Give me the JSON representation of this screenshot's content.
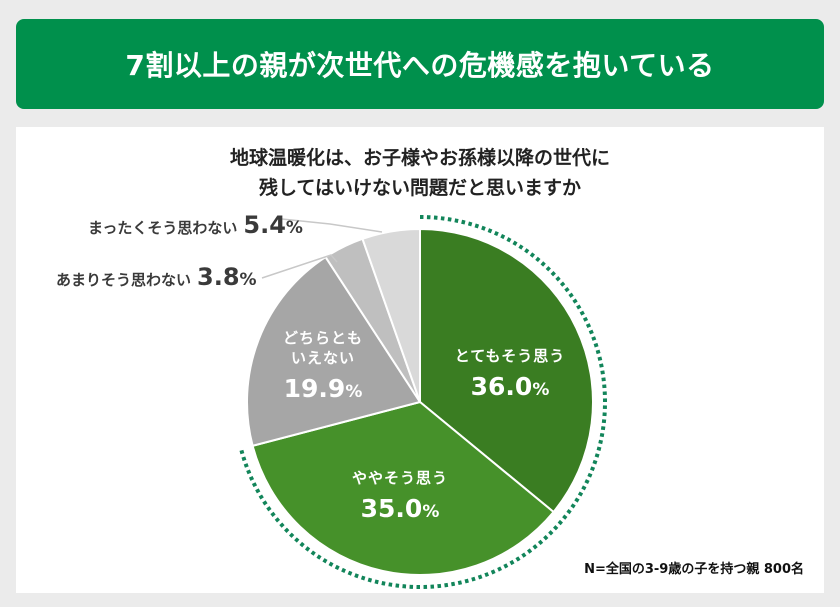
{
  "banner": {
    "title": "7割以上の親が次世代への危機感を抱いている"
  },
  "question": {
    "line1": "地球温暖化は、お子様やお孫様以降の世代に",
    "line2": "残してはいけない問題だと思いますか"
  },
  "labels": {
    "s0": {
      "cat": "とてもそう思う",
      "val": "36.0",
      "unit": "%"
    },
    "s1": {
      "cat": "ややそう思う",
      "val": "35.0",
      "unit": "%"
    },
    "s2": {
      "cat1": "どちらとも",
      "cat2": "いえない",
      "val": "19.9",
      "unit": "%"
    },
    "s3": {
      "cat": "あまりそう思わない",
      "val": "3.8",
      "unit": "%"
    },
    "s4": {
      "cat": "まったくそう思わない",
      "val": "5.4",
      "unit": "%"
    }
  },
  "note": "N=全国の3-9歳の子を持つ親 800名",
  "colors": {
    "banner": "#00904c",
    "very": "#3a7d22",
    "somewhat": "#46912a",
    "neutral": "#a6a6a6",
    "not_much": "#bfbfbf",
    "not_at_all": "#d9d9d9",
    "highlight_dots": "#12855a"
  },
  "chart_data": {
    "type": "pie",
    "title": "地球温暖化は、お子様やお孫様以降の世代に残してはいけない問題だと思いますか",
    "categories": [
      "とてもそう思う",
      "ややそう思う",
      "どちらともいえない",
      "あまりそう思わない",
      "まったくそう思わない"
    ],
    "values": [
      36.0,
      35.0,
      19.9,
      3.8,
      5.4
    ],
    "unit": "%",
    "start_angle": "12 o'clock, clockwise",
    "annotation": "dotted arc highlights とてもそう思う + ややそう思う (71.0%)",
    "note": "N=全国の3-9歳の子を持つ親 800名"
  }
}
